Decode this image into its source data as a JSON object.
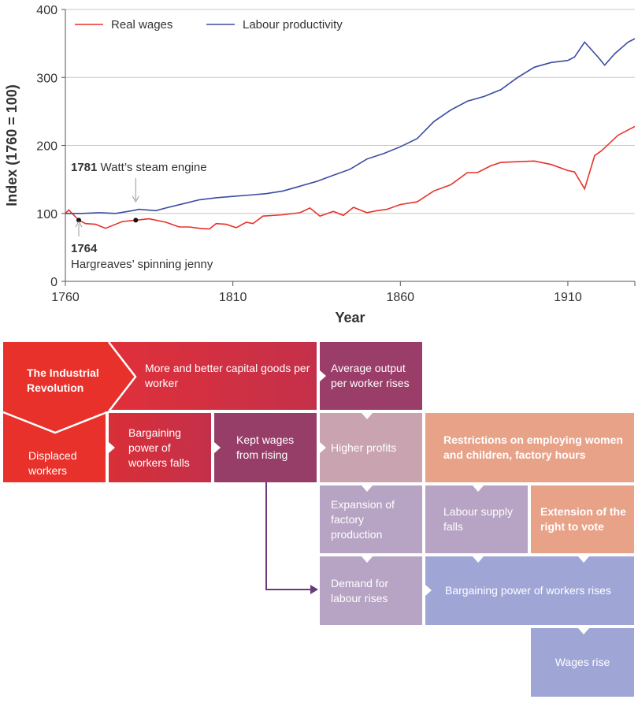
{
  "chart_data": {
    "type": "line",
    "xlabel": "Year",
    "ylabel": "Index (1760 = 100)",
    "xlim": [
      1760,
      1930
    ],
    "ylim": [
      0,
      400
    ],
    "xticks": [
      1760,
      1810,
      1860,
      1910
    ],
    "yticks": [
      0,
      100,
      200,
      300,
      400
    ],
    "grid": "horizontal",
    "legend_placement": "top-left",
    "series": [
      {
        "name": "Real wages",
        "color": "#e8312a",
        "x": [
          1760,
          1761,
          1764,
          1766,
          1769,
          1772,
          1777,
          1781,
          1785,
          1790,
          1794,
          1797,
          1800,
          1803,
          1805,
          1808,
          1811,
          1814,
          1816,
          1819,
          1825,
          1830,
          1833,
          1836,
          1840,
          1843,
          1846,
          1850,
          1853,
          1856,
          1860,
          1865,
          1870,
          1875,
          1880,
          1883,
          1887,
          1890,
          1900,
          1905,
          1910,
          1912,
          1915,
          1918,
          1920,
          1925,
          1930
        ],
        "y": [
          100,
          105,
          90,
          85,
          84,
          78,
          88,
          90,
          92,
          87,
          80,
          80,
          78,
          77,
          85,
          84,
          79,
          87,
          85,
          96,
          98,
          101,
          108,
          96,
          103,
          97,
          109,
          101,
          104,
          106,
          113,
          117,
          133,
          142,
          160,
          160,
          170,
          175,
          177,
          172,
          163,
          161,
          136,
          185,
          192,
          215,
          228
        ]
      },
      {
        "name": "Labour productivity",
        "color": "#3b4ba0",
        "x": [
          1760,
          1765,
          1770,
          1775,
          1780,
          1782,
          1787,
          1790,
          1795,
          1800,
          1805,
          1810,
          1815,
          1820,
          1825,
          1830,
          1835,
          1840,
          1845,
          1850,
          1855,
          1860,
          1865,
          1870,
          1875,
          1880,
          1885,
          1890,
          1895,
          1900,
          1905,
          1910,
          1912,
          1915,
          1919,
          1921,
          1924,
          1928,
          1930
        ],
        "y": [
          100,
          100,
          101,
          100,
          104,
          106,
          104,
          108,
          114,
          120,
          123,
          125,
          127,
          129,
          133,
          140,
          147,
          156,
          165,
          180,
          188,
          198,
          210,
          235,
          252,
          265,
          272,
          282,
          300,
          315,
          322,
          325,
          330,
          352,
          330,
          318,
          335,
          352,
          357
        ]
      }
    ],
    "annotations": [
      {
        "year_label": "1781",
        "text": "Watt’s steam engine",
        "x": 1781,
        "y": 90
      },
      {
        "year_label": "1764",
        "text": "Hargreaves’ spinning jenny",
        "x": 1764,
        "y": 90
      }
    ]
  },
  "diagram": {
    "industrial_revolution": "The Industrial Revolution",
    "capital_goods": "More and better capital goods per worker",
    "average_output": "Average output per worker rises",
    "displaced_workers": "Displaced workers",
    "bargaining_falls": "Bargaining power of workers falls",
    "kept_wages": "Kept wages from rising",
    "higher_profits": "Higher profits",
    "restrictions": "Restrictions on employing women and children, factory hours",
    "expansion": "Expansion of factory production",
    "labour_supply": "Labour supply falls",
    "extension_vote": "Extension of the right to vote",
    "demand_labour": "Demand for labour rises",
    "bargaining_rises": "Bargaining power of workers rises",
    "wages_rise": "Wages rise",
    "colors": {
      "red": "#e8312a",
      "crimson": "#cf2f3e",
      "plum": "#963e68",
      "pink": "#c9a3b0",
      "salmon": "#e8a288",
      "lilac": "#b7a3c3",
      "periwinkle": "#9fa6d6",
      "arrow": "#6b3a7a"
    }
  }
}
